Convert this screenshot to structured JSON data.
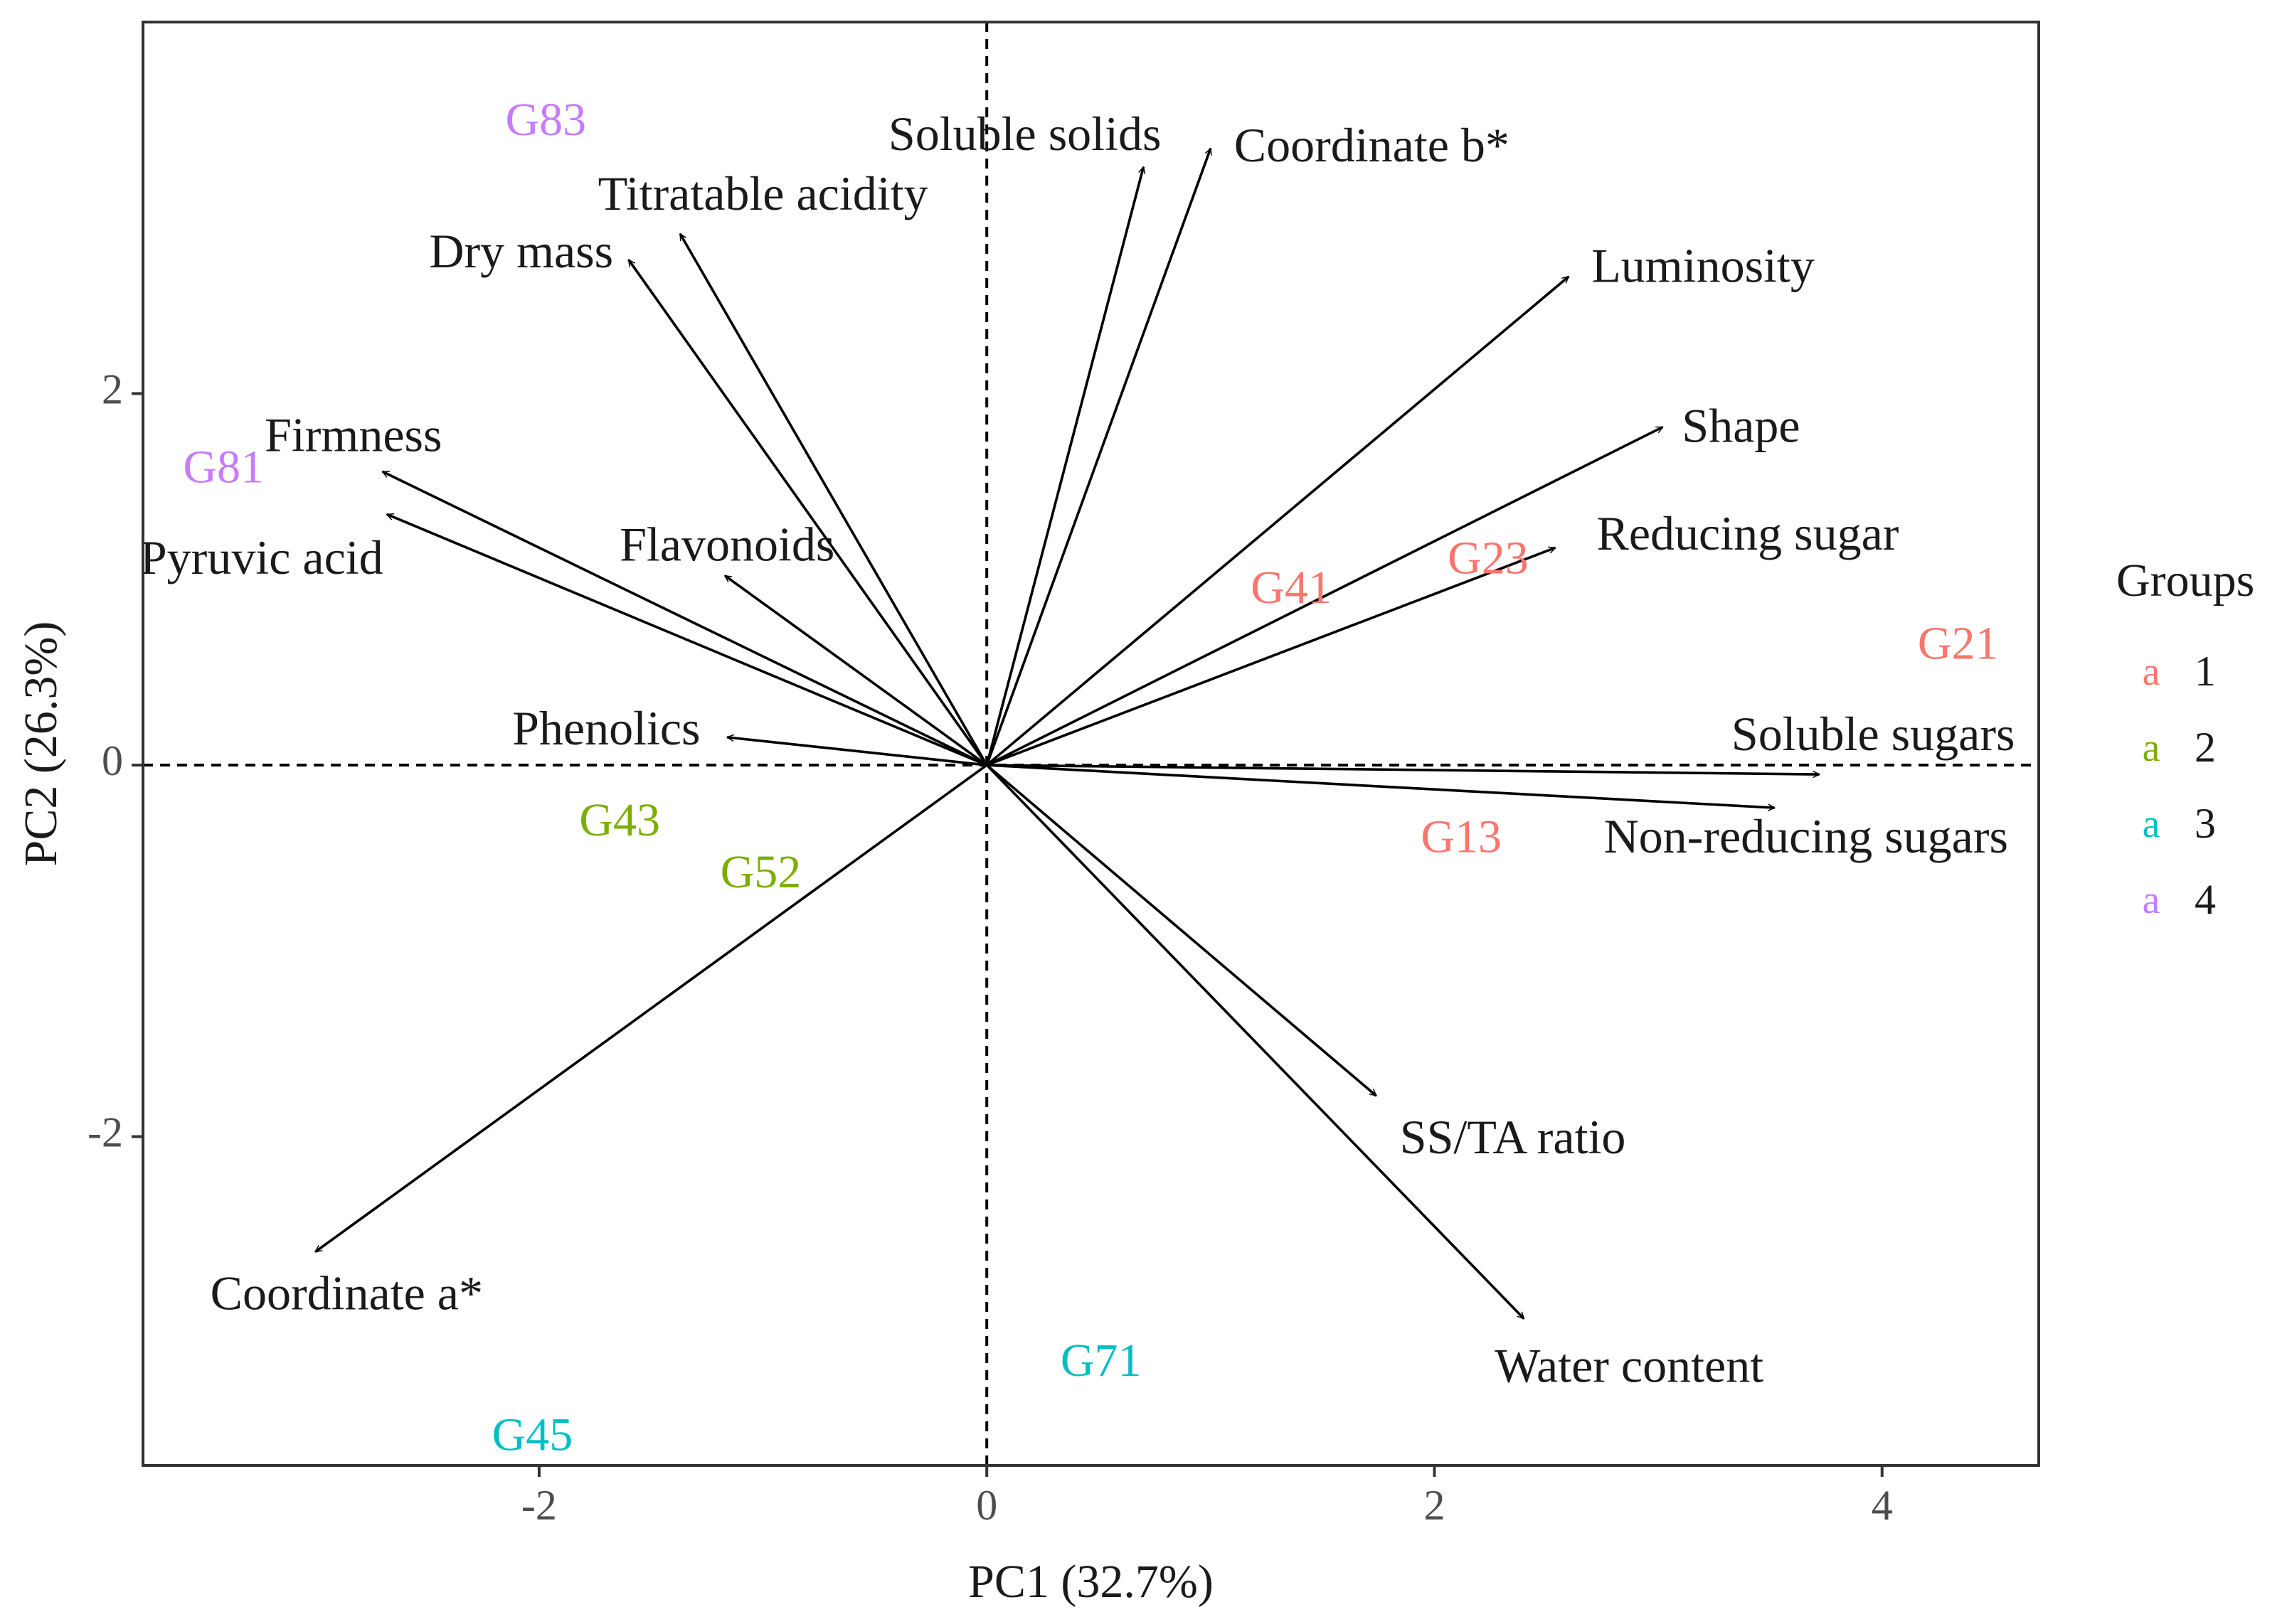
{
  "chart_data": {
    "type": "scatter",
    "subtype": "pca-biplot",
    "xlabel": "PC1 (32.7%)",
    "ylabel": "PC2 (26.3%)",
    "xlim": [
      -3.77,
      4.7
    ],
    "ylim": [
      -3.77,
      4.0
    ],
    "xticks": [
      -2,
      0,
      2,
      4
    ],
    "yticks": [
      -2,
      0,
      2
    ],
    "xtick_labels": [
      "-2",
      "0",
      "2",
      "4"
    ],
    "ytick_labels": [
      "-2",
      "0",
      "2"
    ],
    "grid": false,
    "reference_lines": {
      "x": 0,
      "y": 0,
      "style": "dashed"
    },
    "legend": {
      "title": "Groups",
      "placement": "right",
      "key_glyph": "a",
      "entries": [
        {
          "label": "1",
          "color": "#F8766D"
        },
        {
          "label": "2",
          "color": "#7CAE00"
        },
        {
          "label": "3",
          "color": "#00BFC4"
        },
        {
          "label": "4",
          "color": "#C77CFF"
        }
      ]
    },
    "points": [
      {
        "label": "G83",
        "x": -1.97,
        "y": 3.45,
        "group": "4"
      },
      {
        "label": "G81",
        "x": -3.41,
        "y": 1.58,
        "group": "4"
      },
      {
        "label": "G41",
        "x": 1.36,
        "y": 0.93,
        "group": "1"
      },
      {
        "label": "G23",
        "x": 2.24,
        "y": 1.09,
        "group": "1"
      },
      {
        "label": "G21",
        "x": 4.34,
        "y": 0.63,
        "group": "1"
      },
      {
        "label": "G13",
        "x": 2.12,
        "y": -0.41,
        "group": "1"
      },
      {
        "label": "G43",
        "x": -1.64,
        "y": -0.32,
        "group": "2"
      },
      {
        "label": "G52",
        "x": -1.01,
        "y": -0.6,
        "group": "2"
      },
      {
        "label": "G71",
        "x": 0.51,
        "y": -3.23,
        "group": "3"
      },
      {
        "label": "G45",
        "x": -2.03,
        "y": -3.63,
        "group": "3"
      }
    ],
    "loadings": [
      {
        "name": "Soluble solids",
        "x": 0.7,
        "y": 3.22,
        "label_x": 0.17,
        "label_y": 3.37
      },
      {
        "name": "Coordinate b*",
        "x": 1.0,
        "y": 3.32,
        "label_x": 1.72,
        "label_y": 3.31
      },
      {
        "name": "Titratable acidity",
        "x": -1.37,
        "y": 2.86,
        "label_x": -1.0,
        "label_y": 3.05
      },
      {
        "name": "Dry mass",
        "x": -1.6,
        "y": 2.72,
        "label_x": -2.08,
        "label_y": 2.74
      },
      {
        "name": "Luminosity",
        "x": 2.6,
        "y": 2.63,
        "label_x": 3.2,
        "label_y": 2.66
      },
      {
        "name": "Shape",
        "x": 3.02,
        "y": 1.82,
        "label_x": 3.37,
        "label_y": 1.8
      },
      {
        "name": "Firmness",
        "x": -2.7,
        "y": 1.58,
        "label_x": -2.83,
        "label_y": 1.75
      },
      {
        "name": "Pyruvic acid",
        "x": -2.68,
        "y": 1.35,
        "label_x": -3.24,
        "label_y": 1.09
      },
      {
        "name": "Flavonoids",
        "x": -1.17,
        "y": 1.02,
        "label_x": -1.16,
        "label_y": 1.16
      },
      {
        "name": "Reducing sugar",
        "x": 2.54,
        "y": 1.17,
        "label_x": 3.4,
        "label_y": 1.22
      },
      {
        "name": "Phenolics",
        "x": -1.16,
        "y": 0.15,
        "label_x": -1.7,
        "label_y": 0.17
      },
      {
        "name": "Soluble sugars",
        "x": 3.72,
        "y": -0.05,
        "label_x": 3.96,
        "label_y": 0.14
      },
      {
        "name": "Non-reducing sugars",
        "x": 3.52,
        "y": -0.23,
        "label_x": 3.66,
        "label_y": -0.41
      },
      {
        "name": "SS/TA ratio",
        "x": 1.74,
        "y": -1.78,
        "label_x": 2.35,
        "label_y": -2.03
      },
      {
        "name": "Coordinate a*",
        "x": -3.0,
        "y": -2.62,
        "label_x": -2.86,
        "label_y": -2.87
      },
      {
        "name": "Water content",
        "x": 2.4,
        "y": -2.98,
        "label_x": 2.87,
        "label_y": -3.26
      }
    ]
  }
}
